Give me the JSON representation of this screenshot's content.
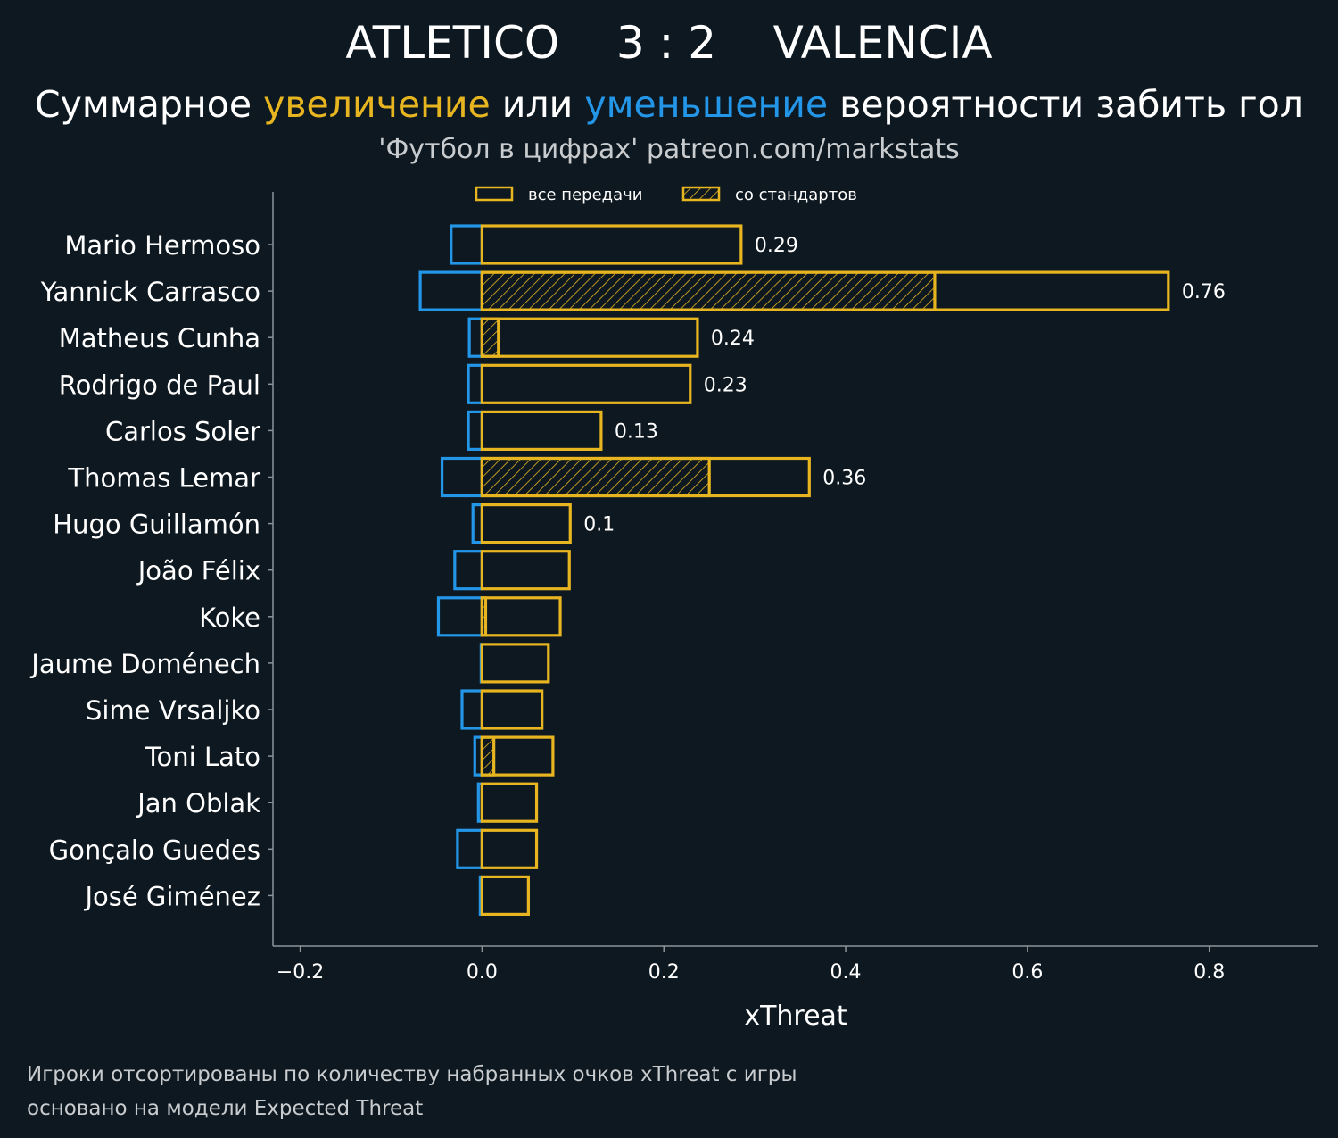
{
  "header": {
    "title": "ATLETICO    3 : 2    VALENCIA",
    "subtitle_prefix": "Суммарное ",
    "subtitle_increase": "увеличение",
    "subtitle_middle": " или ",
    "subtitle_decrease": "уменьшение",
    "subtitle_suffix": " вероятности забить гол",
    "credit": "'Футбол в цифрах' patreon.com/markstats"
  },
  "footnotes": [
    "Игроки отсортированы по количеству набранных очков xThreat с игры",
    "основано на модели Expected Threat"
  ],
  "colors": {
    "background": "#0e1820",
    "increase": "#e7b520",
    "decrease": "#2396e8",
    "axis": "#8a9499",
    "muted_text": "#c9ccce"
  },
  "chart_data": {
    "type": "bar",
    "orientation": "horizontal",
    "xlabel": "xThreat",
    "xlim": [
      -0.23,
      0.92
    ],
    "xticks": [
      -0.2,
      0.0,
      0.2,
      0.4,
      0.6,
      0.8
    ],
    "xtick_labels": [
      "−0.2",
      "0.0",
      "0.2",
      "0.4",
      "0.6",
      "0.8"
    ],
    "grid": false,
    "legend_placement": "top-center",
    "legend": [
      {
        "label": "все передачи",
        "style": "outline"
      },
      {
        "label": "со стандартов",
        "style": "hatched"
      }
    ],
    "categories": [
      "Mario Hermoso",
      "Yannick Carrasco",
      "Matheus Cunha",
      "Rodrigo de Paul",
      "Carlos Soler",
      "Thomas Lemar",
      "Hugo Guillamón",
      "João Félix",
      "Koke",
      "Jaume Doménech",
      "Sime Vrsaljko",
      "Toni Lato",
      "Jan Oblak",
      "Gonçalo Guedes",
      "José Giménez"
    ],
    "series": [
      {
        "role": "increase",
        "values": [
          0.285,
          0.755,
          0.237,
          0.229,
          0.131,
          0.36,
          0.097,
          0.096,
          0.086,
          0.073,
          0.066,
          0.078,
          0.06,
          0.06,
          0.051
        ]
      },
      {
        "role": "decrease",
        "values": [
          -0.034,
          -0.068,
          -0.014,
          -0.015,
          -0.015,
          -0.044,
          -0.01,
          -0.03,
          -0.048,
          -0.001,
          -0.022,
          -0.008,
          -0.004,
          -0.027,
          -0.002
        ]
      },
      {
        "role": "set_pieces",
        "values": [
          0,
          0.498,
          0.018,
          0.0,
          0,
          0.25,
          0,
          0,
          0.004,
          0,
          0,
          0.013,
          0,
          0,
          0
        ]
      }
    ],
    "value_labels": [
      "0.29",
      "0.76",
      "0.24",
      "0.23",
      "0.13",
      "0.36",
      "0.1",
      "",
      "",
      "",
      "",
      "",
      "",
      "",
      ""
    ]
  }
}
